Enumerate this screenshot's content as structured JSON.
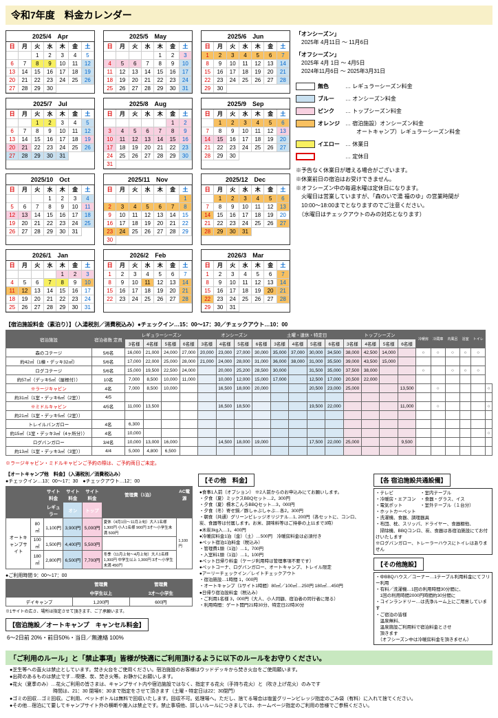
{
  "title": "令和7年度　料金カレンダー",
  "seasons": {
    "on_title": "「オンシーズン」",
    "on_range": "2025年 4月11日 ～ 11月6日",
    "off_title": "「オフシーズン」",
    "off_range1": "2025年 4月 1日 ～ 4月5日",
    "off_range2": "2024年11月6日 ～ 2025年3月31日"
  },
  "legend": [
    {
      "color": "#ffffff",
      "label": "無色",
      "desc": "… レギュラーシーズン料金"
    },
    {
      "color": "#c8e0f0",
      "label": "ブルー",
      "desc": "… オンシーズン料金"
    },
    {
      "color": "#f8d0e0",
      "label": "ピンク",
      "desc": "… トップシーズン料金"
    },
    {
      "color": "#f8c060",
      "label": "オレンジ",
      "desc": "… 宿泊施設）オンシーズン料金\n　　オートキャンプ）レギュラーシーズン料金"
    },
    {
      "color": "#f8f060",
      "label": "イエロー",
      "desc": "… 休業日"
    },
    {
      "color": "border",
      "label": "",
      "desc": "… 定休日"
    }
  ],
  "notices": [
    "※予告なく休業日が増える場合がございます。",
    "※休業前日の宿泊はお受けできません。",
    "※オフシーズン中の毎週水曜は定休日になります。",
    "　火曜日は営業していますが、「森のいで湯 福のゆ」の営業時間が",
    "　10:00～18:00までとなりますのでご注意ください。",
    "　（水曜日はチェックアウトのみの対応となります）"
  ],
  "months": [
    {
      "t": "2025/4　Apr",
      "s": 2,
      "n": 30
    },
    {
      "t": "2025/5　May",
      "s": 4,
      "n": 31
    },
    {
      "t": "2025/6　Jun",
      "s": 0,
      "n": 30
    },
    {
      "t": "2025/7　Jul",
      "s": 2,
      "n": 31
    },
    {
      "t": "2025/8　Aug",
      "s": 5,
      "n": 31
    },
    {
      "t": "2025/9　Sep",
      "s": 1,
      "n": 30
    },
    {
      "t": "2025/10　Oct",
      "s": 3,
      "n": 31
    },
    {
      "t": "2025/11　Nov",
      "s": 6,
      "n": 30
    },
    {
      "t": "2025/12　Dec",
      "s": 1,
      "n": 31
    },
    {
      "t": "2026/1　Jan",
      "s": 4,
      "n": 31
    },
    {
      "t": "2026/2　Feb",
      "s": 0,
      "n": 28
    },
    {
      "t": "2026/3　Mar",
      "s": 0,
      "n": 31
    }
  ],
  "dow": [
    "日",
    "月",
    "火",
    "水",
    "木",
    "金",
    "土"
  ],
  "lodging_head": "【宿泊施設料金（素泊り）】（入湯税別／消費税込み）●チェックイン…15：00～17：30／チェックアウト…10：00",
  "lodging_cols": [
    "宿泊施設",
    "宿泊者数",
    "定員",
    "レギュラーシーズン（冬、トップシーズン以外）",
    "",
    "",
    "",
    "オンシーズン　土曜1泊・連休（最終泊日除く）・特定日除く",
    "",
    "",
    "",
    "土曜1泊・連休（最終泊日除く）・特定日",
    "",
    "",
    "",
    "トップシーズン",
    "",
    "",
    "",
    "宿泊施設設備"
  ],
  "lodging_sub": [
    "",
    "",
    "",
    "3名様",
    "4名様",
    "5名様",
    "6名様",
    "3名様",
    "4名様",
    "5名様",
    "6名様",
    "3名様",
    "4名様",
    "5名様",
    "6名様",
    "3名様",
    "4名様",
    "5名様",
    "6名様",
    "冷暖房",
    "冷蔵庫",
    "内風呂",
    "浴室",
    "トイレ"
  ],
  "lodging_rows": [
    [
      "森のコテージ",
      "5/6名",
      "16,000",
      "21,000",
      "24,000",
      "27,000",
      "20,000",
      "23,000",
      "27,000",
      "30,000",
      "35,000",
      "37,000",
      "30,000",
      "34,500",
      "38,000",
      "42,500",
      "14,000",
      "",
      "○",
      "○",
      "○",
      "○",
      "○"
    ],
    [
      "約42㎡（1棟・デッキ32㎡）",
      "5/6名",
      "17,000",
      "22,000",
      "25,000",
      "28,000",
      "21,000",
      "24,000",
      "28,000",
      "31,000",
      "36,000",
      "38,000",
      "31,000",
      "35,500",
      "39,000",
      "43,500",
      "15,000",
      "",
      "",
      "",
      "",
      "",
      ""
    ],
    [
      "ログコテージ",
      "5/6名",
      "15,000",
      "19,500",
      "22,500",
      "24,000",
      "",
      "20,000",
      "25,200",
      "28,500",
      "30,000",
      "",
      "31,500",
      "35,000",
      "37,500",
      "38,000",
      "",
      "",
      "○",
      "",
      "○",
      "○",
      "○"
    ],
    [
      "約57㎡（デッキ5㎡（屋根付））",
      "10名",
      "7,000",
      "8,500",
      "10,000",
      "11,000",
      "",
      "10,000",
      "12,000",
      "15,000",
      "17,000",
      "",
      "12,500",
      "17,000",
      "20,500",
      "22,000",
      "",
      "",
      "",
      "",
      "",
      "",
      ""
    ],
    [
      "※ラージキャビン",
      "4名",
      "7,000",
      "8,500",
      "10,000",
      "",
      "",
      "16,500",
      "18,000",
      "20,000",
      "",
      "",
      "20,500",
      "23,000",
      "25,000",
      "",
      "",
      "13,500",
      "",
      "○",
      "",
      "",
      "",
      "○"
    ],
    [
      "約31㎡（1室・デッキ6㎡（2室））",
      "4/5",
      "",
      "",
      "",
      "",
      "",
      "",
      "",
      "",
      "",
      "",
      "",
      "",
      "",
      "",
      "",
      "",
      "",
      "",
      "",
      "",
      "",
      ""
    ],
    [
      "※ミドルキャビン",
      "4/5名",
      "11,000",
      "13,500",
      "",
      "",
      "",
      "16,500",
      "18,500",
      "",
      "",
      "",
      "19,500",
      "22,000",
      "",
      "",
      "",
      "11,000",
      "",
      "○",
      "",
      "",
      "",
      "○"
    ],
    [
      "約21㎡（1室・デッキ5㎡（2室））",
      "",
      "",
      "",
      "",
      "",
      "",
      "",
      "",
      "",
      "",
      "",
      "",
      "",
      "",
      "",
      "",
      "",
      "",
      "",
      "",
      "",
      "",
      ""
    ],
    [
      "トレイルバンガロー",
      "4名",
      "6,300",
      "",
      "",
      "",
      "",
      "",
      "",
      "",
      "",
      "",
      "",
      "",
      "",
      "",
      "",
      "",
      "",
      "",
      "",
      "",
      "",
      ""
    ],
    [
      "約15㎡（1室・デッキ3㎡（4ヶ所分））",
      "4名",
      "10,000",
      "",
      "",
      "",
      "",
      "",
      "",
      "",
      "",
      "",
      "",
      "",
      "",
      "",
      "",
      "",
      "",
      "",
      "",
      "",
      "",
      "○"
    ],
    [
      "ログバンガロー",
      "3/4名",
      "10,000",
      "13,000",
      "16,000",
      "",
      "",
      "14,500",
      "18,000",
      "19,000",
      "",
      "",
      "17,500",
      "22,000",
      "25,000",
      "",
      "",
      "9,500",
      "",
      "",
      "",
      "",
      "",
      ""
    ],
    [
      "約13㎡（1室・デッキ3㎡（3室））",
      "4/4",
      "5,000",
      "4,800",
      "6,500",
      "",
      "",
      "",
      "",
      "",
      "",
      "",
      "",
      "",
      "",
      "",
      "",
      "",
      "",
      "",
      "",
      "",
      "",
      ""
    ]
  ],
  "cabin_note": "※ラージキャビン・ミドルキャビンご予約の際は、ご予約両日ご未定。",
  "camp_head": "【オートキャンプ他　料金】（入湯税別／消費税込み）",
  "camp_sub": "●チェックイン…13：00～17：30　●チェックアウト…12：00",
  "camp_cols": [
    "",
    "",
    "サイト料金",
    "サイト料金",
    "サイト料金",
    "管理費（1泊）",
    "AC電源（1泊電源）"
  ],
  "camp_sub_cols": [
    "",
    "",
    "レギュラー",
    "オン",
    "トップ",
    "",
    ""
  ],
  "camp_rows": [
    [
      "オートキャンプサイト",
      "80㎡",
      "1,100円",
      "3,900円",
      "5,000円",
      "夏休（4月1日～11月上旬）大人1名様 1,300円 小人1名様 900円 3才～小学生未満 500円",
      "1,100円"
    ],
    [
      "",
      "100㎡",
      "1,500円",
      "4,400円",
      "5,500円",
      "",
      ""
    ],
    [
      "",
      "180㎡",
      "2,800円",
      "6,500円",
      "7,700円",
      "冬季（11月上旬～4月上旬）大人1名様 1,300円 中学生以上 1,300円 3才～小学生未満 450円",
      ""
    ]
  ],
  "daycamp_head": "●ご利用時間 9：00～17：00",
  "daycamp_cols": [
    "",
    "管理費",
    "管理費"
  ],
  "daycamp_sub": [
    "",
    "中学生以上",
    "3才～小学生"
  ],
  "daycamp_rows": [
    [
      "デイキャンプ",
      "1,200円",
      "600円"
    ]
  ],
  "daycamp_note": "※1サイトの広さ、場所は指定させて頂きます、ご了承願います。",
  "cancel_head": "【宿泊施設／オートキャンプ　キャンセル料金】",
  "cancel_text": "6～2日前 20%・前日50%・当日／無連絡 100%",
  "other_head": "【その他　料金】",
  "other_items": [
    "●食事1人前（オプション） ※2人前からのお申込みにてお願いします。",
    "・夕食（夏）ミックスBBQセット…2，300円",
    "・夕食（夏）標木こんろBBQセット…3，000円",
    "・夕食（冬）寄せ鍋／豚しゃぶしゃぶ…各2，300円",
    "・朝食（共通）グリーンビレッジオリジナル…1, 200円（各セットに、コンロ、炭、食器等は付属します。お米、調味料等はご持参の上11まで3時）",
    "●木炭3kg入…1，400円",
    "●冷暖房料金1泊（金）（土）…500円　冷暖房料金は必須付き",
    "●ペット宿泊1泊料金（税込み）",
    "・管理費1頭（1泊）…1，700円",
    "・入室料1頭（1泊）…1，100円",
    "●ペット日帰り料金（ケージ利用時は管理事項不要です）",
    "●ペットコーナ、ログバンガロー、オートキャンプ、トレイル限定",
    "●アーリーチェックイン／レイトチェックアウト",
    "・宿泊施設…1時間 1，000円",
    "・オートキャンプ（1サイト1時間）80㎡／100㎡…250円 180㎡…450円",
    "●日帰り宿泊設料金（税込み）",
    "・ご利用1名様 3，000円（大人、小人同額、宿泊者の同行者に限る）",
    "・利用時間：ゲート開門21時30分、特定日22時30分"
  ],
  "equip_head": "【各 宿泊施設共通設備】",
  "equip_items": [
    "・テレビ　　　　　　・室内テーブル",
    "・冷暖房・エアコン　・食器・グラス、イス",
    "・電気ポット　　　　・室外テーブル（１台分）",
    "・ホットカーペット",
    "・洗濯機、食器、調理器具",
    "・布団、枕、スリッパ、ドライヤー、食器棚他、",
    "　掃除機、BBQコンロ、炭、食器は各宿泊施設にてお付けいたします",
    "",
    "※ログバンガロー、トレーラーハウスにトイレはありません"
  ],
  "facility_head": "【その他施設】",
  "facility_items": [
    "・中BBQハウス／コーナー…1テーブル利用料金にてフリー利用",
    "・有料／洗濯機…1回の利用時間30分間に、",
    "　1回の利用時間2000円時間約30分間に",
    "・コインランドリー…は洗浄ルーム上にご用意しています",
    "・ご宿泊の皆様",
    "　温泉無料、",
    "　温泉施設ご利用料で宿泊料金とさせ",
    "　頂きます",
    "　（オフシーズン中は冷暖房料金を頂きません）"
  ],
  "rules_head": "「ご利用のルール」と「禁止事項」皆様が快適にご利用頂けるように以下のルールをお守りください。",
  "rules": [
    "●芝生等への直火は禁止としています。焚き火台をご使用ください。宿泊施設のお客様はウッドデッキから焚き火台をご使用願います。",
    "●出荷のあるものは禁止です…喫煙、炭、焚き火等。お静かにお願いします。",
    "●花火（夏季のみ）…花火ご利用の皆さまは、キャンプサイト内や宿泊施設ではなく、指定する花火（手持ち花火）と（吹き上げ花火）のみです",
    "　　　　　　　　　時間は、21：30 閉場6：30まで指定をさせて頂きます（土曜・特定日は22：30閉門）",
    "●ゴミの回収…ゴミ回収。ご利用、ペットボトルは無料で回収いたします。回収不可。処理場へ。ただし、捨てる場合は塩釜グリーンビレッジ指定のごみ袋（有料）に入れて捨てください。",
    "●その他…宿泊にて要してキャンプサイト外の横断や搬入は禁止です。禁止事項他、詳しいルールにつきましては、ホームページ指定のご利用の皆様でご参照ください。"
  ]
}
